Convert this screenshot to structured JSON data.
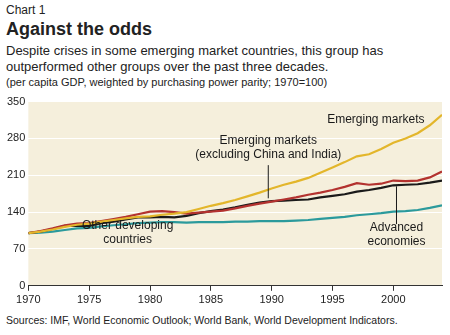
{
  "chart_data": {
    "type": "line",
    "chart_label": "Chart 1",
    "title": "Against the odds",
    "subtitle": "Despite crises in some emerging market countries, this group has outperformed other groups over the past three decades.",
    "note": "(per capita GDP, weighted by purchasing power parity; 1970=100)",
    "source": "Sources: IMF, World Economic Outlook; World Bank, World Development Indicators.",
    "x": [
      1970,
      1971,
      1972,
      1973,
      1974,
      1975,
      1976,
      1977,
      1978,
      1979,
      1980,
      1981,
      1982,
      1983,
      1984,
      1985,
      1986,
      1987,
      1988,
      1989,
      1990,
      1991,
      1992,
      1993,
      1994,
      1995,
      1996,
      1997,
      1998,
      1999,
      2000,
      2001,
      2002,
      2003,
      2004
    ],
    "xlim": [
      1970,
      2004
    ],
    "xticks": [
      1970,
      1975,
      1980,
      1985,
      1990,
      1995,
      2000
    ],
    "ylim": [
      0,
      350
    ],
    "yticks": [
      0,
      70,
      140,
      210,
      280,
      350
    ],
    "grid": true,
    "series": [
      {
        "name": "Emerging markets",
        "color": "#e3b62b",
        "values": [
          100,
          103,
          107,
          112,
          116,
          118,
          122,
          125,
          128,
          131,
          132,
          135,
          137,
          140,
          146,
          152,
          157,
          163,
          170,
          177,
          185,
          192,
          198,
          205,
          215,
          225,
          235,
          246,
          250,
          260,
          272,
          280,
          290,
          305,
          325
        ]
      },
      {
        "name": "Emerging markets (excluding China and India)",
        "color": "#b3322f",
        "values": [
          100,
          104,
          109,
          115,
          118,
          119,
          123,
          127,
          131,
          136,
          141,
          142,
          140,
          137,
          139,
          141,
          143,
          147,
          152,
          156,
          160,
          164,
          168,
          173,
          177,
          182,
          188,
          195,
          192,
          194,
          200,
          199,
          200,
          206,
          217
        ]
      },
      {
        "name": "Advanced economies",
        "color": "#1a1a1a",
        "values": [
          100,
          103,
          108,
          114,
          114,
          114,
          119,
          122,
          126,
          130,
          130,
          131,
          130,
          133,
          138,
          142,
          145,
          149,
          154,
          158,
          161,
          162,
          163,
          164,
          168,
          171,
          174,
          179,
          182,
          186,
          191,
          192,
          193,
          196,
          200
        ]
      },
      {
        "name": "Other developing countries",
        "color": "#2b9a9c",
        "values": [
          100,
          101,
          103,
          106,
          109,
          110,
          113,
          115,
          117,
          119,
          120,
          121,
          121,
          120,
          121,
          121,
          121,
          122,
          122,
          123,
          123,
          123,
          124,
          125,
          127,
          129,
          131,
          134,
          136,
          138,
          141,
          142,
          144,
          148,
          153
        ]
      }
    ]
  }
}
